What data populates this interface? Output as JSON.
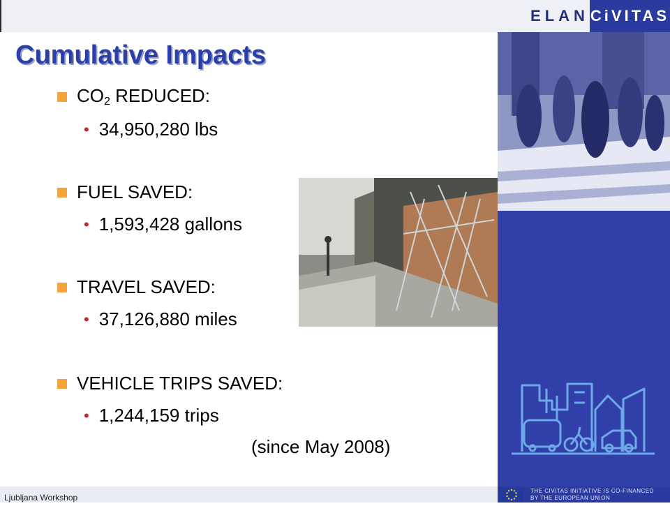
{
  "header": {
    "logo_elan": "ELAN",
    "logo_civitas": "CiVITAS"
  },
  "title": "Cumulative Impacts",
  "items": [
    {
      "label_main": "CO",
      "label_sub": "2",
      "label_rest": " REDUCED:",
      "value": "34,950,280 lbs"
    },
    {
      "label": "FUEL SAVED:",
      "value": "1,593,428 gallons"
    },
    {
      "label": "TRAVEL SAVED:",
      "value": "37,126,880 miles"
    },
    {
      "label": "VEHICLE TRIPS SAVED:",
      "value": "1,244,159 trips"
    }
  ],
  "since": "(since May 2008)",
  "footer": {
    "workshop": "Ljubljana Workshop",
    "eu_line1": "THE CIVITAS INITIATIVE IS CO-FINANCED",
    "eu_line2": "BY THE EUROPEAN UNION"
  },
  "colors": {
    "title": "#2b3fa8",
    "bullet_square": "#f3a33a",
    "bullet_dot": "#d0202a",
    "brand_blue": "#2b3a9e"
  }
}
